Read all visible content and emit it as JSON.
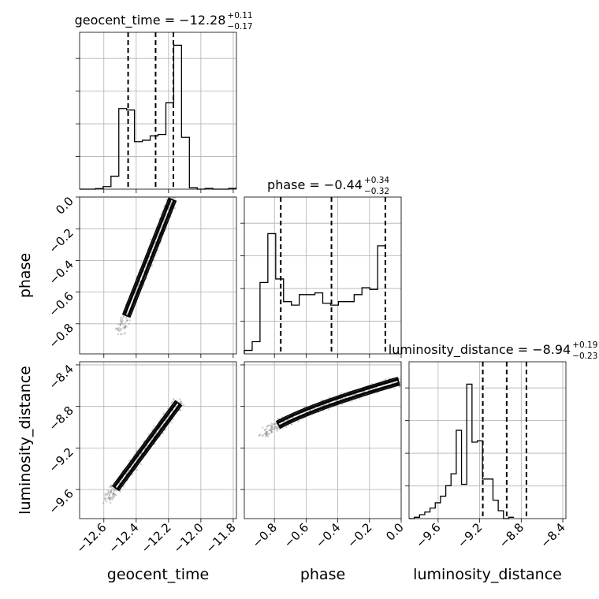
{
  "chart_data": {
    "type": "corner",
    "parameters": [
      {
        "name": "geocent_time",
        "label": "geocent_time",
        "range": [
          -12.75,
          -11.78
        ],
        "ticks": [
          -12.6,
          -12.4,
          -12.2,
          -12.0,
          -11.8
        ],
        "tick_labels": [
          "−12.6",
          "−12.4",
          "−12.2",
          "−12.0",
          "−11.8"
        ]
      },
      {
        "name": "phase",
        "label": "phase",
        "range": [
          -0.99,
          0.0
        ],
        "ticks": [
          -0.8,
          -0.6,
          -0.4,
          -0.2,
          0.0
        ],
        "tick_labels": [
          "−0.8",
          "−0.6",
          "−0.4",
          "−0.2",
          "0.0"
        ]
      },
      {
        "name": "luminosity_distance",
        "label": "luminosity_distance",
        "range": [
          -9.88,
          -8.37
        ],
        "ticks": [
          -9.6,
          -9.2,
          -8.8,
          -8.4
        ],
        "tick_labels": [
          "−9.6",
          "−9.2",
          "−8.8",
          "−8.4"
        ]
      }
    ],
    "titles": [
      {
        "main": "geocent_time = −12.28",
        "sup": "+0.11",
        "sub": "−0.17"
      },
      {
        "main": "phase = −0.44",
        "sup": "+0.34",
        "sub": "−0.32"
      },
      {
        "main": "luminosity_distance = −8.94",
        "sup": "+0.19",
        "sub": "−0.23"
      }
    ],
    "histograms": [
      {
        "edges_start": -12.75,
        "bin_width": 0.0485,
        "counts": [
          0,
          0,
          0.4,
          1.8,
          9,
          56,
          55,
          33,
          34,
          37,
          38,
          60,
          100,
          36,
          1,
          0,
          0.5,
          0,
          0,
          0.5
        ],
        "max": 109,
        "quantiles": [
          -12.45,
          -12.28,
          -12.17
        ]
      },
      {
        "edges_start": -0.99,
        "bin_width": 0.0495,
        "counts": [
          2,
          7,
          41,
          69,
          43,
          30,
          28,
          34,
          34,
          35,
          29,
          28,
          30,
          30,
          34,
          38,
          37,
          62
        ],
        "max": 90,
        "quantiles": [
          -0.76,
          -0.44,
          -0.1
        ]
      },
      {
        "edges_start": -9.88,
        "bin_width": 0.0505,
        "counts": [
          0,
          1,
          3,
          5,
          8,
          12,
          17,
          25,
          34,
          67,
          26,
          102,
          58,
          59,
          30,
          30,
          14,
          6,
          0,
          1
        ],
        "max": 119,
        "quantiles": [
          -9.17,
          -8.94,
          -8.75
        ]
      }
    ],
    "grid": true
  }
}
